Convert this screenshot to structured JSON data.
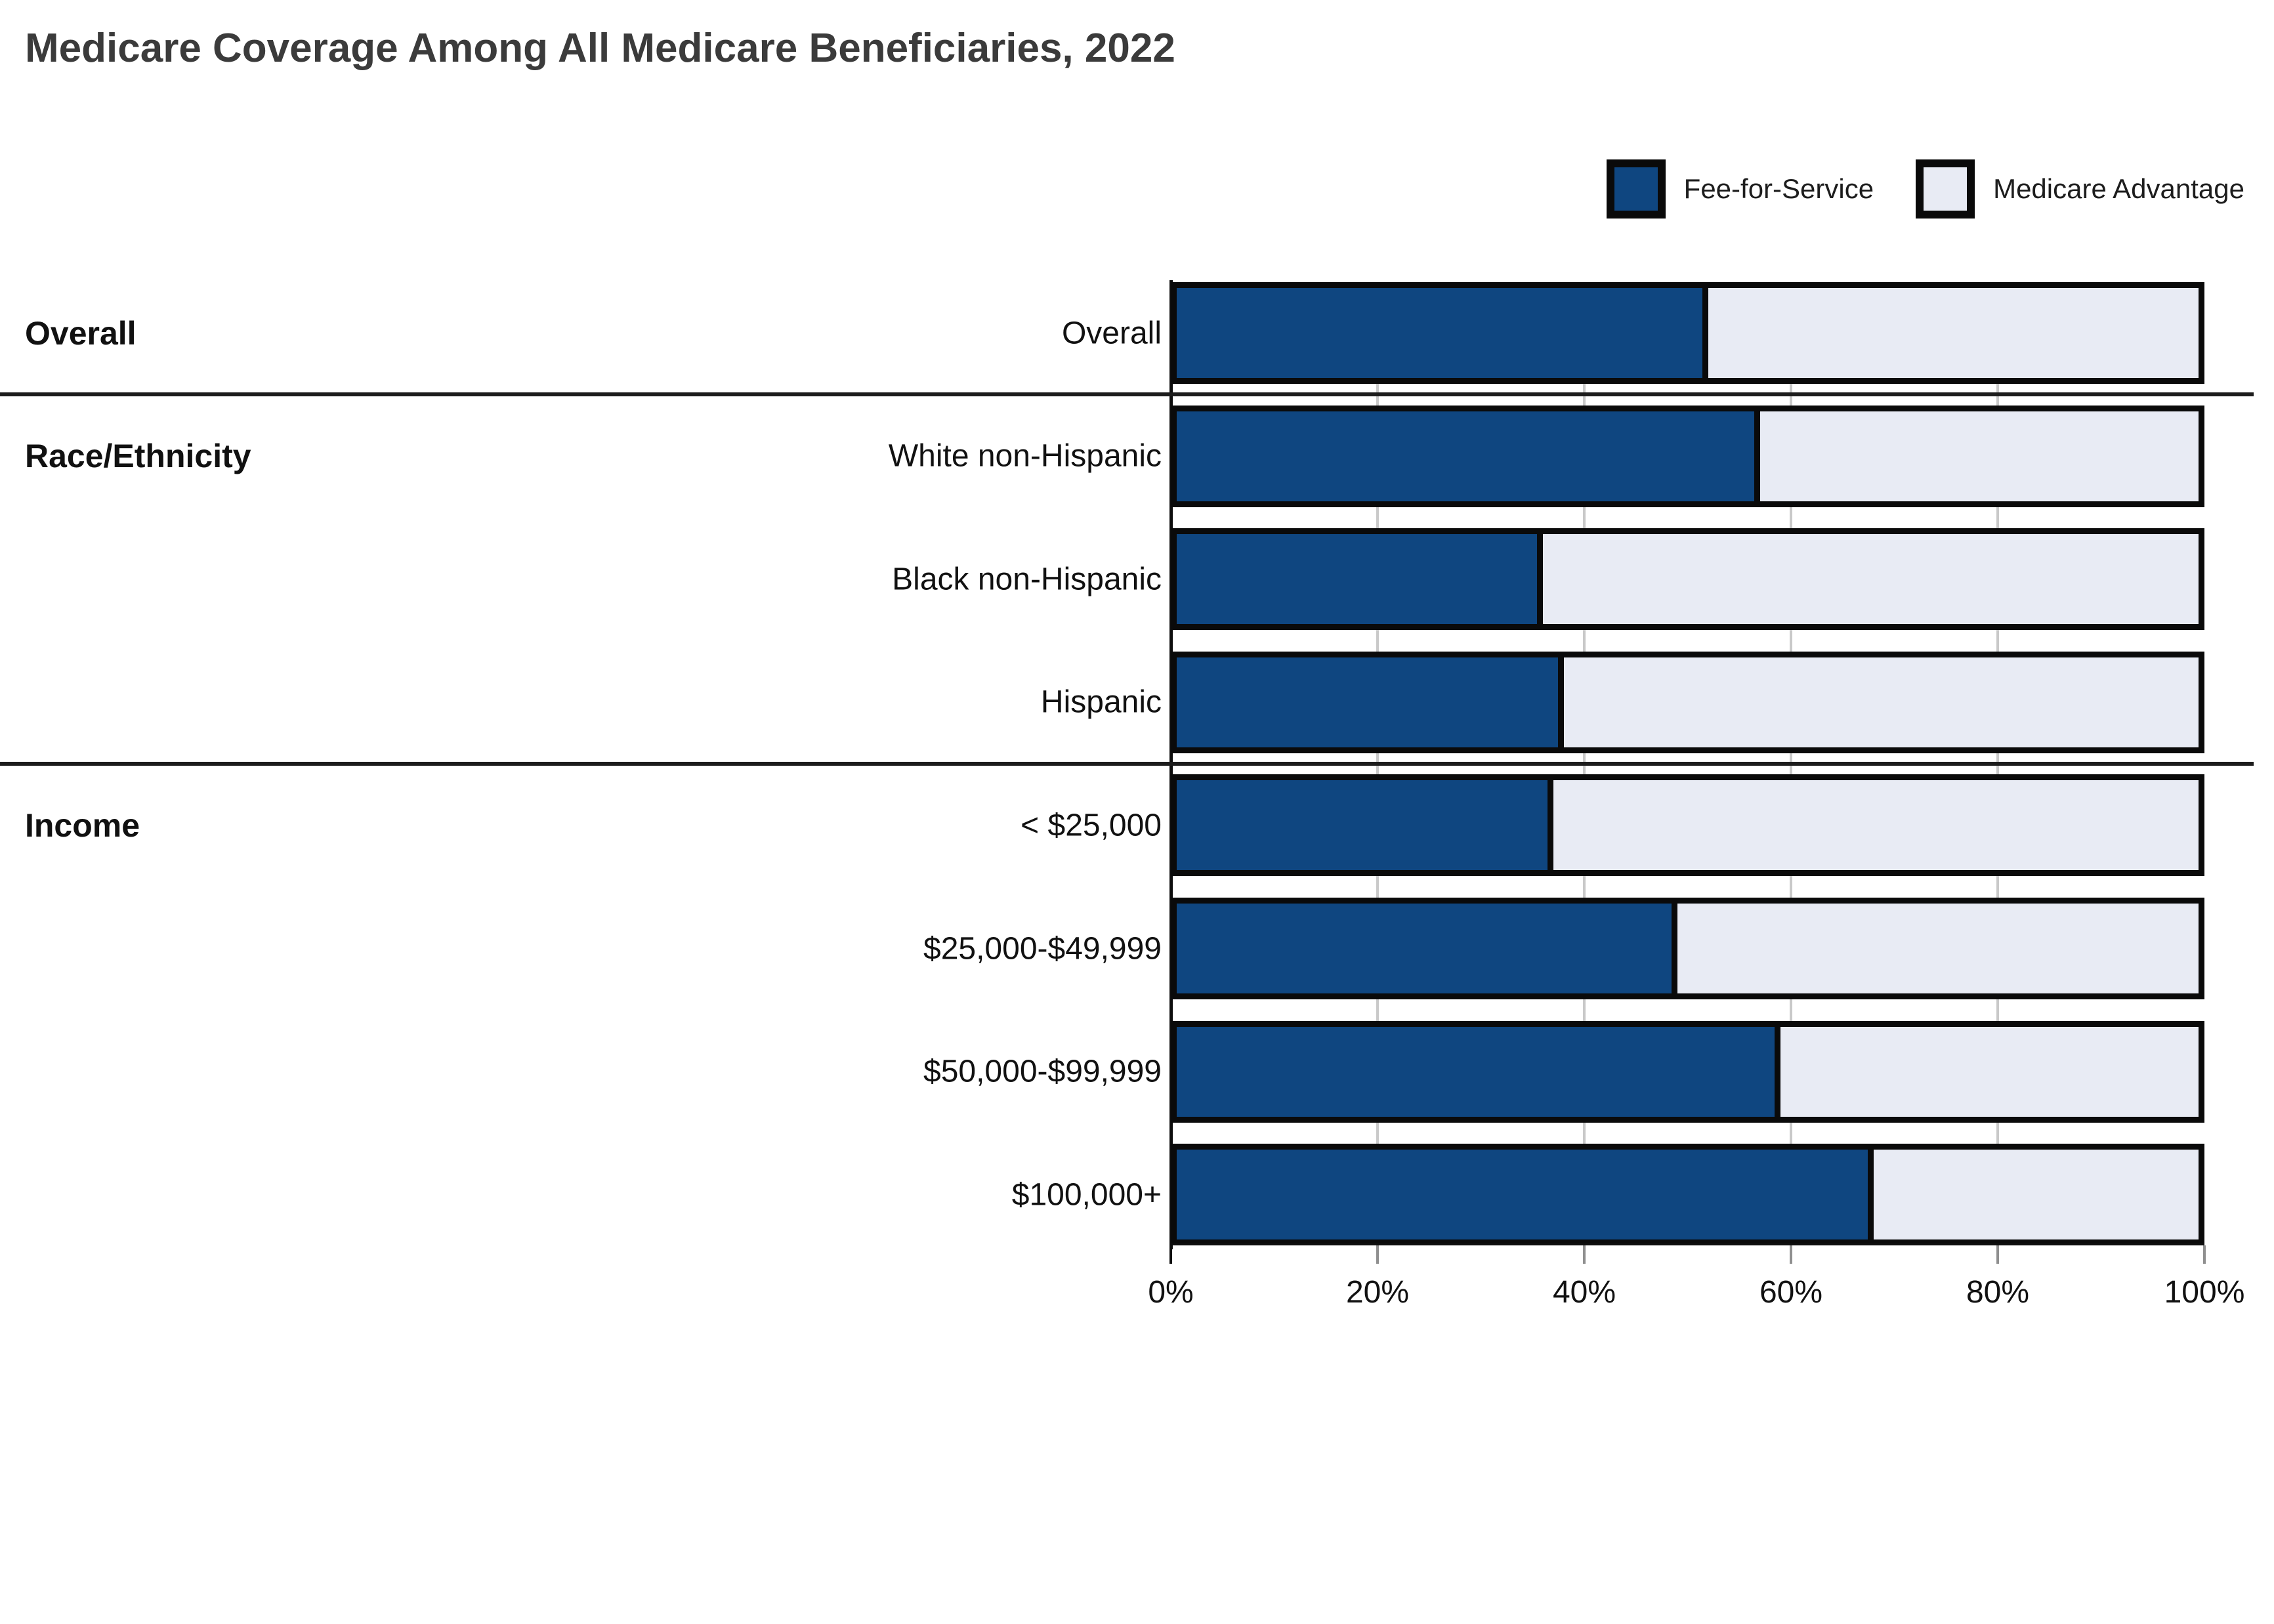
{
  "title": "Medicare Coverage Among All Medicare Beneficiaries, 2022",
  "legend": [
    {
      "label": "Fee-for-Service",
      "color": "#0F4680"
    },
    {
      "label": "Medicare Advantage",
      "color": "#E8EBF4"
    }
  ],
  "chart_data": {
    "type": "bar",
    "orientation": "horizontal",
    "stacked": true,
    "unit": "percent",
    "title": "Medicare Coverage Among All Medicare Beneficiaries, 2022",
    "groups": [
      {
        "label": "Overall",
        "rows": [
          "Overall"
        ]
      },
      {
        "label": "Race/Ethnicity",
        "rows": [
          "White non-Hispanic",
          "Black non-Hispanic",
          "Hispanic"
        ]
      },
      {
        "label": "Income",
        "rows": [
          "< $25,000",
          "$25,000-$49,999",
          "$50,000-$99,999",
          "$100,000+"
        ]
      }
    ],
    "categories": [
      "Overall",
      "White non-Hispanic",
      "Black non-Hispanic",
      "Hispanic",
      "< $25,000",
      "$25,000-$49,999",
      "$50,000-$99,999",
      "$100,000+"
    ],
    "series": [
      {
        "name": "Fee-for-Service",
        "color": "#0F4680",
        "values": [
          52,
          57,
          36,
          38,
          37,
          49,
          59,
          68
        ]
      },
      {
        "name": "Medicare Advantage",
        "color": "#E8EBF4",
        "values": [
          48,
          43,
          64,
          62,
          63,
          51,
          41,
          32
        ]
      }
    ],
    "x_ticks": [
      "0%",
      "20%",
      "40%",
      "60%",
      "80%",
      "100%"
    ],
    "x_tick_values": [
      0,
      20,
      40,
      60,
      80,
      100
    ],
    "xlim": [
      0,
      100
    ],
    "grid": true,
    "legend_position": "top-right"
  }
}
